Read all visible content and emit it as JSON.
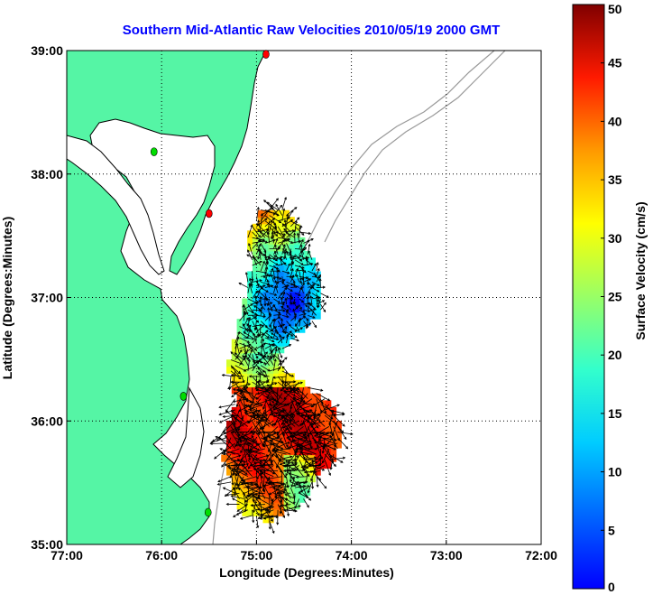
{
  "chart_data": {
    "type": "heatmap",
    "title": "Southern Mid-Atlantic Raw Velocities 2010/05/19 2000 GMT",
    "xlabel": "Longitude (Degrees:Minutes)",
    "ylabel": "Latitude (Degrees:Minutes)",
    "xlim": [
      -77,
      -72
    ],
    "ylim": [
      35,
      39
    ],
    "x_ticks": [
      {
        "value": -77,
        "label": "77:00"
      },
      {
        "value": -76,
        "label": "76:00"
      },
      {
        "value": -75,
        "label": "75:00"
      },
      {
        "value": -74,
        "label": "74:00"
      },
      {
        "value": -73,
        "label": "73:00"
      },
      {
        "value": -72,
        "label": "72:00"
      }
    ],
    "y_ticks": [
      {
        "value": 35,
        "label": "35:00"
      },
      {
        "value": 36,
        "label": "36:00"
      },
      {
        "value": 37,
        "label": "37:00"
      },
      {
        "value": 38,
        "label": "38:00"
      },
      {
        "value": 39,
        "label": "39:00"
      }
    ],
    "grid": true,
    "colorbar": {
      "label": "Surface Velocity (cm/s)",
      "min": 0,
      "max": 50,
      "ticks": [
        0,
        5,
        10,
        15,
        20,
        25,
        30,
        35,
        40,
        45,
        50
      ],
      "colormap": "jet"
    },
    "land_color": "#55f5a5",
    "station_markers": [
      {
        "lon": -74.9,
        "lat": 38.97,
        "color": "#ff0000"
      },
      {
        "lon": -76.08,
        "lat": 38.18,
        "color": "#00dd00"
      },
      {
        "lon": -75.5,
        "lat": 37.68,
        "color": "#ff0000"
      },
      {
        "lon": -75.77,
        "lat": 36.2,
        "color": "#00dd00"
      },
      {
        "lon": -75.51,
        "lat": 35.26,
        "color": "#00dd00"
      }
    ]
  }
}
